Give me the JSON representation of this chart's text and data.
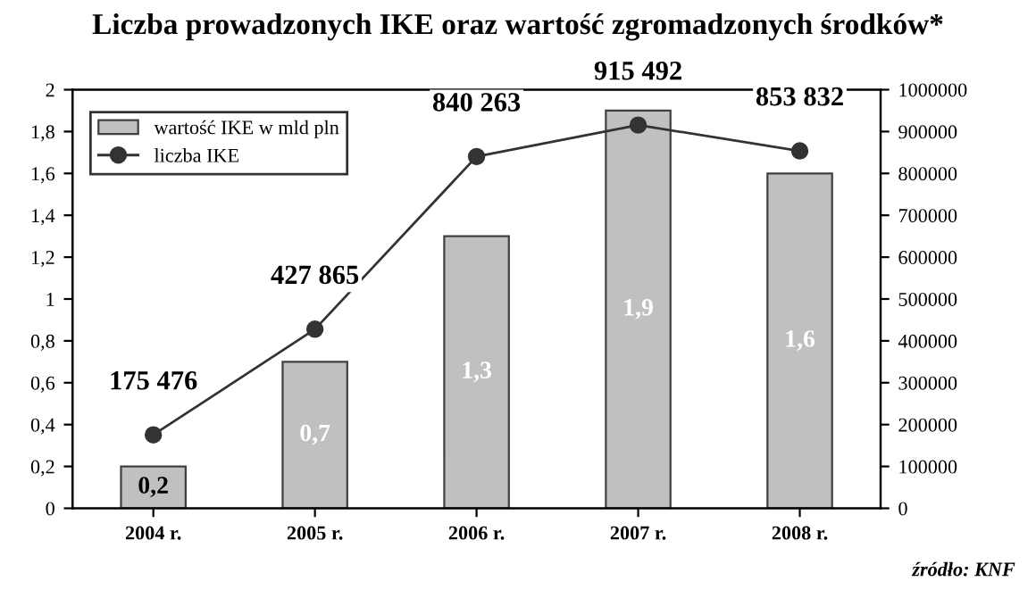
{
  "chart_data": {
    "type": "bar",
    "title": "Liczba prowadzonych IKE oraz wartość zgromadzonych środków*",
    "categories": [
      "2004 r.",
      "2005 r.",
      "2006 r.",
      "2007 r.",
      "2008 r."
    ],
    "series": [
      {
        "name": "wartość IKE w mld pln",
        "color": "#c0c0c0",
        "values": [
          0.2,
          0.7,
          1.3,
          1.9,
          1.6
        ],
        "value_labels": [
          "0,2",
          "0,7",
          "1,3",
          "1,9",
          "1,6"
        ]
      },
      {
        "name": "liczba IKE",
        "type": "line",
        "axis": "y2",
        "color": "#333333",
        "marker": "circle",
        "values": [
          175476,
          427865,
          840263,
          915492,
          853832
        ],
        "value_labels": [
          "175 476",
          "427 865",
          "840 263",
          "915 492",
          "853 832"
        ]
      }
    ],
    "ylim": [
      0,
      2
    ],
    "yticks": [
      0,
      {
        "value": 0.2,
        "label": "0,2"
      },
      {
        "value": 0.4,
        "label": "0,4"
      },
      {
        "value": 0.6,
        "label": "0,6"
      },
      {
        "value": 0.8,
        "label": "0,8"
      },
      1,
      {
        "value": 1.2,
        "label": "1,2"
      },
      {
        "value": 1.4,
        "label": "1,4"
      },
      {
        "value": 1.6,
        "label": "1,6"
      },
      {
        "value": 1.8,
        "label": "1,8"
      },
      2
    ],
    "y2lim": [
      0,
      1000000
    ],
    "y2ticks": [
      0,
      100000,
      200000,
      300000,
      400000,
      500000,
      600000,
      700000,
      800000,
      900000,
      1000000
    ],
    "annotations": [
      "źródło: KNF"
    ],
    "legend": "top left",
    "grid": false
  }
}
